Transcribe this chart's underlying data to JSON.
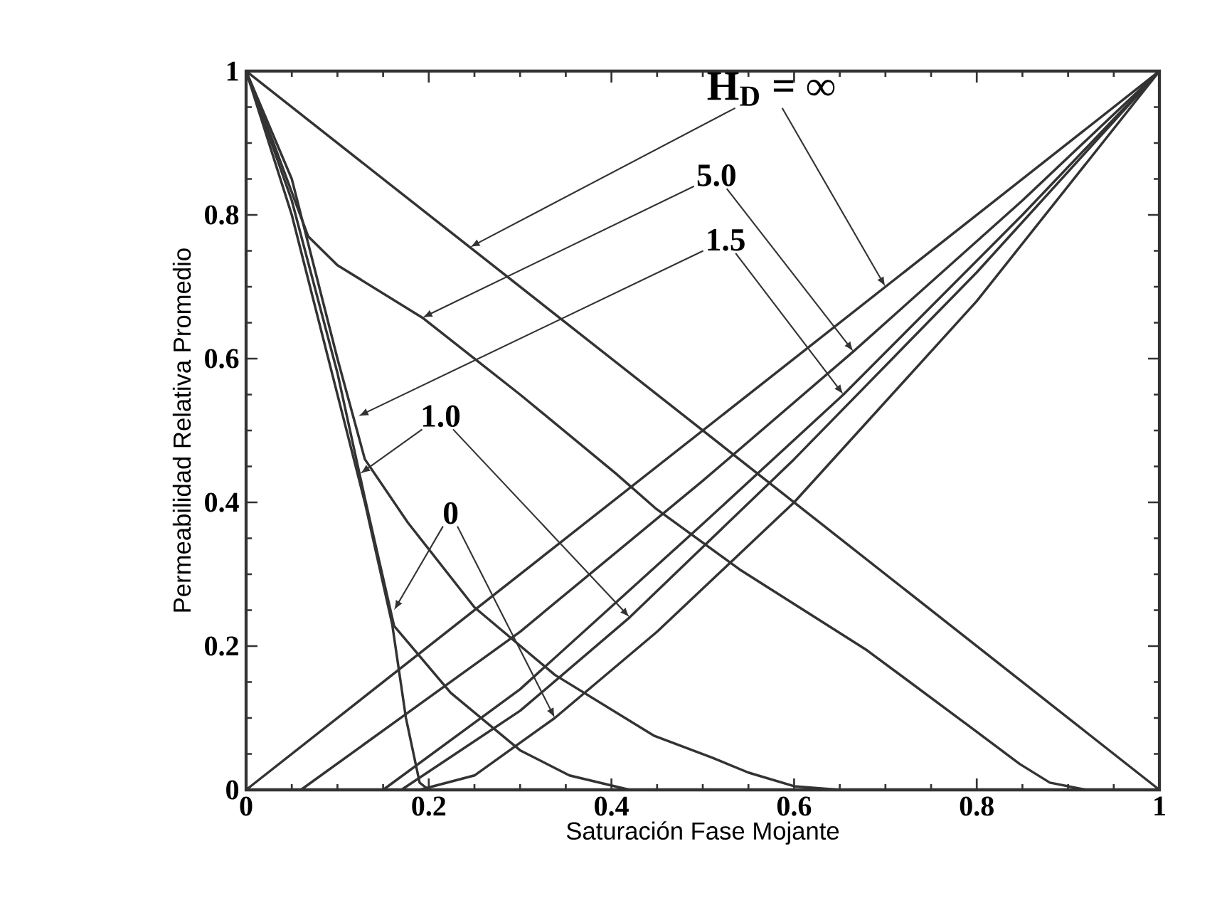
{
  "chart_data": {
    "type": "line",
    "xlabel": "Saturación Fase Mojante",
    "ylabel": "Permeabilidad Relativa Promedio",
    "xlim": [
      0,
      1
    ],
    "ylim": [
      0,
      1
    ],
    "xticks": [
      0,
      0.2,
      0.4,
      0.6,
      0.8,
      1
    ],
    "yticks": [
      0,
      0.2,
      0.4,
      0.6,
      0.8,
      1
    ],
    "marker": "none",
    "line_style": "solid",
    "annotations": [
      {
        "text": "H$_{D}$ = ∞",
        "x": 0.245,
        "y": 0.755
      },
      {
        "text": "5.0",
        "x": 0.193,
        "y": 0.657
      },
      {
        "text": "1.5",
        "x": 0.123,
        "y": 0.52
      },
      {
        "text": "1.0",
        "x": 0.125,
        "y": 0.44
      },
      {
        "text": "0",
        "x": 0.162,
        "y": 0.25
      }
    ],
    "series": [
      {
        "color": "#333333",
        "x": [
          0,
          1
        ],
        "values": [
          1,
          0
        ]
      },
      {
        "color": "#333333",
        "x": [
          0,
          0.03,
          0.068,
          0.1,
          0.193,
          0.3,
          0.405,
          0.448,
          0.54,
          0.68,
          0.785,
          0.847,
          0.88,
          0.92
        ],
        "values": [
          1,
          0.9,
          0.77,
          0.73,
          0.657,
          0.55,
          0.44,
          0.392,
          0.307,
          0.194,
          0.095,
          0.036,
          0.01,
          0
        ]
      },
      {
        "color": "#333333",
        "x": [
          0,
          0.05,
          0.1,
          0.13,
          0.177,
          0.25,
          0.338,
          0.447,
          0.51,
          0.55,
          0.6,
          0.65
        ],
        "values": [
          1,
          0.85,
          0.6,
          0.46,
          0.372,
          0.254,
          0.16,
          0.075,
          0.045,
          0.024,
          0.005,
          0
        ]
      },
      {
        "color": "#333333",
        "x": [
          0,
          0.05,
          0.1,
          0.13,
          0.162,
          0.224,
          0.3,
          0.354,
          0.42
        ],
        "values": [
          1,
          0.82,
          0.58,
          0.406,
          0.228,
          0.135,
          0.055,
          0.02,
          0
        ]
      },
      {
        "color": "#333333",
        "x": [
          0,
          0.05,
          0.1,
          0.13,
          0.16,
          0.175,
          0.19,
          0.2
        ],
        "values": [
          1,
          0.8,
          0.55,
          0.4,
          0.23,
          0.1,
          0.01,
          0
        ]
      },
      {
        "color": "#333333",
        "x": [
          0,
          1
        ],
        "values": [
          0,
          1
        ]
      },
      {
        "color": "#333333",
        "x": [
          0.06,
          0.3,
          0.5,
          0.665,
          0.85,
          1
        ],
        "values": [
          0,
          0.22,
          0.43,
          0.61,
          0.82,
          1
        ]
      },
      {
        "color": "#333333",
        "x": [
          0.15,
          0.3,
          0.5,
          0.654,
          0.85,
          1
        ],
        "values": [
          0,
          0.14,
          0.37,
          0.55,
          0.8,
          1
        ]
      },
      {
        "color": "#333333",
        "x": [
          0.17,
          0.3,
          0.42,
          0.6,
          0.8,
          1
        ],
        "values": [
          0,
          0.11,
          0.24,
          0.46,
          0.72,
          1
        ]
      },
      {
        "color": "#333333",
        "x": [
          0.19,
          0.25,
          0.338,
          0.45,
          0.6,
          0.8,
          1
        ],
        "values": [
          0,
          0.02,
          0.1,
          0.22,
          0.4,
          0.68,
          1
        ]
      }
    ]
  }
}
